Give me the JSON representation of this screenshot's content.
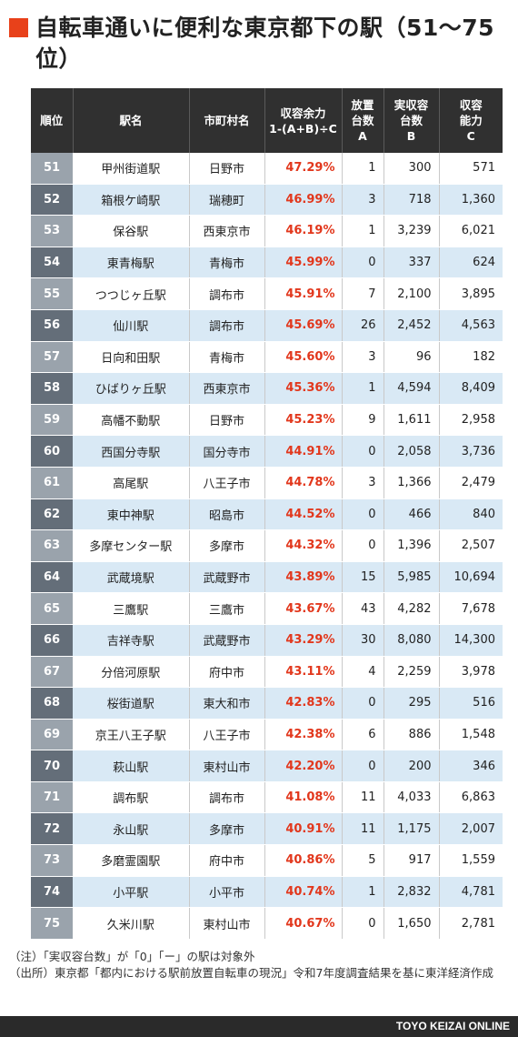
{
  "title": "自転車通いに便利な東京都下の駅（51〜75位）",
  "table": {
    "headers": {
      "rank": "順位",
      "station": "駅名",
      "city": "市町村名",
      "ratio_line1": "収容余力",
      "ratio_line2": "1-(A+B)÷C",
      "a_line1": "放置",
      "a_line2": "台数",
      "a_line3": "A",
      "b_line1": "実収容",
      "b_line2": "台数",
      "b_line3": "B",
      "c_line1": "収容",
      "c_line2": "能力",
      "c_line3": "C"
    },
    "rows": [
      {
        "rank": "51",
        "station": "甲州街道駅",
        "city": "日野市",
        "ratio": "47.29%",
        "a": "1",
        "b": "300",
        "c": "571"
      },
      {
        "rank": "52",
        "station": "箱根ケ崎駅",
        "city": "瑞穂町",
        "ratio": "46.99%",
        "a": "3",
        "b": "718",
        "c": "1,360"
      },
      {
        "rank": "53",
        "station": "保谷駅",
        "city": "西東京市",
        "ratio": "46.19%",
        "a": "1",
        "b": "3,239",
        "c": "6,021"
      },
      {
        "rank": "54",
        "station": "東青梅駅",
        "city": "青梅市",
        "ratio": "45.99%",
        "a": "0",
        "b": "337",
        "c": "624"
      },
      {
        "rank": "55",
        "station": "つつじヶ丘駅",
        "city": "調布市",
        "ratio": "45.91%",
        "a": "7",
        "b": "2,100",
        "c": "3,895"
      },
      {
        "rank": "56",
        "station": "仙川駅",
        "city": "調布市",
        "ratio": "45.69%",
        "a": "26",
        "b": "2,452",
        "c": "4,563"
      },
      {
        "rank": "57",
        "station": "日向和田駅",
        "city": "青梅市",
        "ratio": "45.60%",
        "a": "3",
        "b": "96",
        "c": "182"
      },
      {
        "rank": "58",
        "station": "ひばりヶ丘駅",
        "city": "西東京市",
        "ratio": "45.36%",
        "a": "1",
        "b": "4,594",
        "c": "8,409"
      },
      {
        "rank": "59",
        "station": "高幡不動駅",
        "city": "日野市",
        "ratio": "45.23%",
        "a": "9",
        "b": "1,611",
        "c": "2,958"
      },
      {
        "rank": "60",
        "station": "西国分寺駅",
        "city": "国分寺市",
        "ratio": "44.91%",
        "a": "0",
        "b": "2,058",
        "c": "3,736"
      },
      {
        "rank": "61",
        "station": "高尾駅",
        "city": "八王子市",
        "ratio": "44.78%",
        "a": "3",
        "b": "1,366",
        "c": "2,479"
      },
      {
        "rank": "62",
        "station": "東中神駅",
        "city": "昭島市",
        "ratio": "44.52%",
        "a": "0",
        "b": "466",
        "c": "840"
      },
      {
        "rank": "63",
        "station": "多摩センター駅",
        "city": "多摩市",
        "ratio": "44.32%",
        "a": "0",
        "b": "1,396",
        "c": "2,507"
      },
      {
        "rank": "64",
        "station": "武蔵境駅",
        "city": "武蔵野市",
        "ratio": "43.89%",
        "a": "15",
        "b": "5,985",
        "c": "10,694"
      },
      {
        "rank": "65",
        "station": "三鷹駅",
        "city": "三鷹市",
        "ratio": "43.67%",
        "a": "43",
        "b": "4,282",
        "c": "7,678"
      },
      {
        "rank": "66",
        "station": "吉祥寺駅",
        "city": "武蔵野市",
        "ratio": "43.29%",
        "a": "30",
        "b": "8,080",
        "c": "14,300"
      },
      {
        "rank": "67",
        "station": "分倍河原駅",
        "city": "府中市",
        "ratio": "43.11%",
        "a": "4",
        "b": "2,259",
        "c": "3,978"
      },
      {
        "rank": "68",
        "station": "桜街道駅",
        "city": "東大和市",
        "ratio": "42.83%",
        "a": "0",
        "b": "295",
        "c": "516"
      },
      {
        "rank": "69",
        "station": "京王八王子駅",
        "city": "八王子市",
        "ratio": "42.38%",
        "a": "6",
        "b": "886",
        "c": "1,548"
      },
      {
        "rank": "70",
        "station": "萩山駅",
        "city": "東村山市",
        "ratio": "42.20%",
        "a": "0",
        "b": "200",
        "c": "346"
      },
      {
        "rank": "71",
        "station": "調布駅",
        "city": "調布市",
        "ratio": "41.08%",
        "a": "11",
        "b": "4,033",
        "c": "6,863"
      },
      {
        "rank": "72",
        "station": "永山駅",
        "city": "多摩市",
        "ratio": "40.91%",
        "a": "11",
        "b": "1,175",
        "c": "2,007"
      },
      {
        "rank": "73",
        "station": "多磨霊園駅",
        "city": "府中市",
        "ratio": "40.86%",
        "a": "5",
        "b": "917",
        "c": "1,559"
      },
      {
        "rank": "74",
        "station": "小平駅",
        "city": "小平市",
        "ratio": "40.74%",
        "a": "1",
        "b": "2,832",
        "c": "4,781"
      },
      {
        "rank": "75",
        "station": "久米川駅",
        "city": "東村山市",
        "ratio": "40.67%",
        "a": "0",
        "b": "1,650",
        "c": "2,781"
      }
    ]
  },
  "notes": {
    "note": "（注）「実収容台数」が「0」「ー」の駅は対象外",
    "source": "（出所）東京都「都内における駅前放置自転車の現況」令和7年度調査結果を基に東洋経済作成"
  },
  "footer": {
    "brand": "TOYO KEIZAI ONLINE"
  },
  "colors": {
    "accent": "#e8411a",
    "ratio_text": "#e2371c",
    "header_bg": "#303030",
    "row_alt": "#d9e9f5"
  }
}
